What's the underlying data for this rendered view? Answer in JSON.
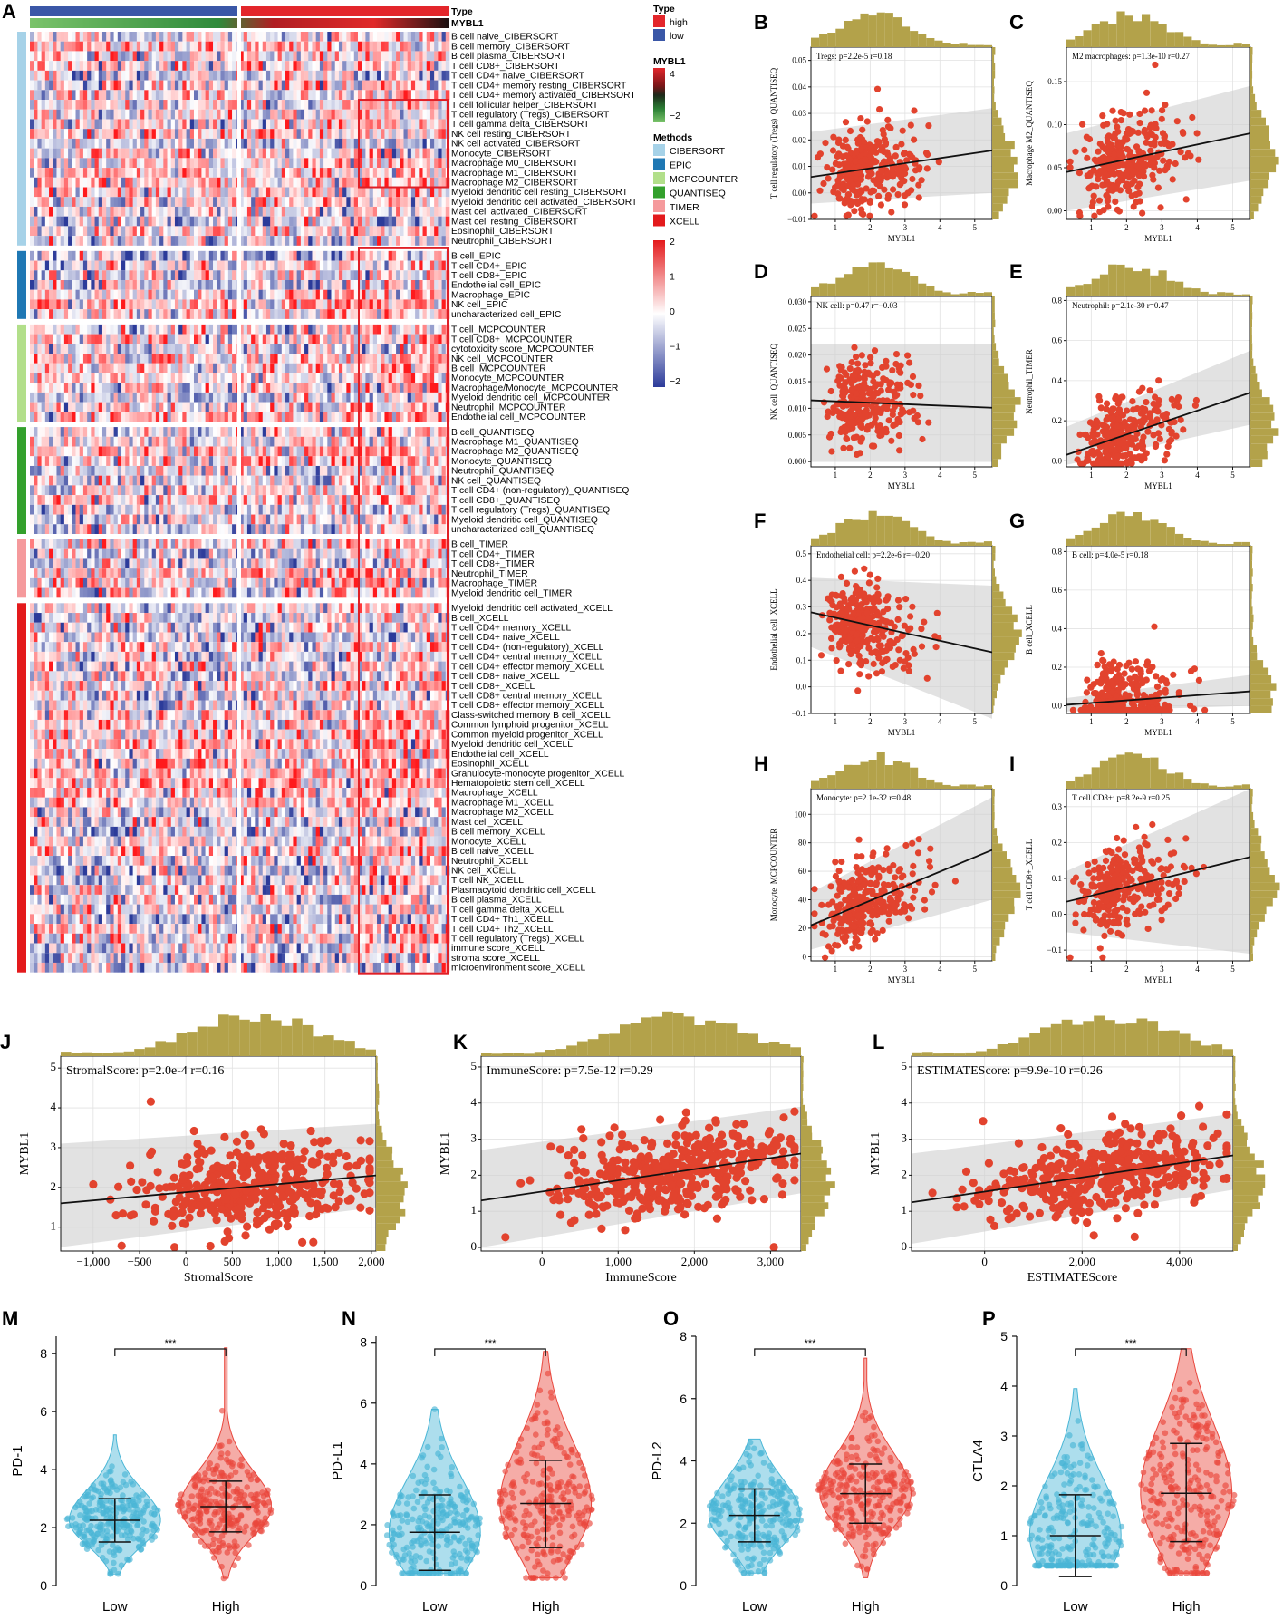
{
  "colors": {
    "high": "#e3262b",
    "low": "#3a57a7",
    "cibersort": "#a6d2e8",
    "epic": "#1f78b4",
    "mcpcounter": "#b2df8a",
    "quantiseq": "#33a02c",
    "timer": "#f59a9c",
    "xcell": "#e31a1c",
    "heat_hi": "#e41a1c",
    "heat_lo": "#2c3b9a",
    "scatter": "#e2432e",
    "hist": "#b3a24a",
    "violin_low": "#49b6d6",
    "violin_high": "#e9463c"
  },
  "heatmap": {
    "letter": "A",
    "top_labels": [
      "Type",
      "MYBL1"
    ],
    "groups": [
      {
        "method": "CIBERSORT",
        "rows": [
          "B cell naive_CIBERSORT",
          "B cell memory_CIBERSORT",
          "B cell plasma_CIBERSORT",
          "T cell CD8+_CIBERSORT",
          "T cell CD4+ naive_CIBERSORT",
          "T cell CD4+ memory resting_CIBERSORT",
          "T cell CD4+ memory activated_CIBERSORT",
          "T cell follicular helper_CIBERSORT",
          "T cell regulatory (Tregs)_CIBERSORT",
          "T cell gamma delta_CIBERSORT",
          "NK cell resting_CIBERSORT",
          "NK cell activated_CIBERSORT",
          "Monocyte_CIBERSORT",
          "Macrophage M0_CIBERSORT",
          "Macrophage M1_CIBERSORT",
          "Macrophage M2_CIBERSORT",
          "Myeloid dendritic cell resting_CIBERSORT",
          "Myeloid dendritic cell activated_CIBERSORT",
          "Mast cell activated_CIBERSORT",
          "Mast cell resting_CIBERSORT",
          "Eosinophil_CIBERSORT",
          "Neutrophil_CIBERSORT"
        ]
      },
      {
        "method": "EPIC",
        "rows": [
          "B cell_EPIC",
          "T cell CD4+_EPIC",
          "T cell CD8+_EPIC",
          "Endothelial cell_EPIC",
          "Macrophage_EPIC",
          "NK cell_EPIC",
          "uncharacterized cell_EPIC"
        ]
      },
      {
        "method": "MCPCOUNTER",
        "rows": [
          "T cell_MCPCOUNTER",
          "T cell CD8+_MCPCOUNTER",
          "cytotoxicity score_MCPCOUNTER",
          "NK cell_MCPCOUNTER",
          "B cell_MCPCOUNTER",
          "Monocyte_MCPCOUNTER",
          "Macrophage/Monocyte_MCPCOUNTER",
          "Myeloid dendritic cell_MCPCOUNTER",
          "Neutrophil_MCPCOUNTER",
          "Endothelial cell_MCPCOUNTER"
        ]
      },
      {
        "method": "QUANTISEQ",
        "rows": [
          "B cell_QUANTISEQ",
          "Macrophage M1_QUANTISEQ",
          "Macrophage M2_QUANTISEQ",
          "Monocyte_QUANTISEQ",
          "Neutrophil_QUANTISEQ",
          "NK cell_QUANTISEQ",
          "T cell CD4+ (non-regulatory)_QUANTISEQ",
          "T cell CD8+_QUANTISEQ",
          "T cell regulatory (Tregs)_QUANTISEQ",
          "Myeloid dendritic cell_QUANTISEQ",
          "uncharacterized cell_QUANTISEQ"
        ]
      },
      {
        "method": "TIMER",
        "rows": [
          "B cell_TIMER",
          "T cell CD4+_TIMER",
          "T cell CD8+_TIMER",
          "Neutrophil_TIMER",
          "Macrophage_TIMER",
          "Myeloid dendritic cell_TIMER"
        ]
      },
      {
        "method": "XCELL",
        "rows": [
          "Myeloid dendritic cell activated_XCELL",
          "B cell_XCELL",
          "T cell CD4+ memory_XCELL",
          "T cell CD4+ naive_XCELL",
          "T cell CD4+ (non-regulatory)_XCELL",
          "T cell CD4+ central memory_XCELL",
          "T cell CD4+ effector memory_XCELL",
          "T cell CD8+ naive_XCELL",
          "T cell CD8+_XCELL",
          "T cell CD8+ central memory_XCELL",
          "T cell CD8+ effector memory_XCELL",
          "Class-switched memory B cell_XCELL",
          "Common lymphoid progenitor_XCELL",
          "Common myeloid progenitor_XCELL",
          "Myeloid dendritic cell_XCELL",
          "Endothelial cell_XCELL",
          "Eosinophil_XCELL",
          "Granulocyte-monocyte progenitor_XCELL",
          "Hematopoietic stem cell_XCELL",
          "Macrophage_XCELL",
          "Macrophage M1_XCELL",
          "Macrophage M2_XCELL",
          "Mast cell_XCELL",
          "B cell memory_XCELL",
          "Monocyte_XCELL",
          "B cell naive_XCELL",
          "Neutrophil_XCELL",
          "NK cell_XCELL",
          "T cell NK_XCELL",
          "Plasmacytoid dendritic cell_XCELL",
          "B cell plasma_XCELL",
          "T cell gamma delta_XCELL",
          "T cell CD4+ Th1_XCELL",
          "T cell CD4+ Th2_XCELL",
          "T cell regulatory (Tregs)_XCELL",
          "immune score_XCELL",
          "stroma score_XCELL",
          "microenvironment score_XCELL"
        ]
      }
    ],
    "legend": {
      "type_title": "Type",
      "type_items": [
        "high",
        "low"
      ],
      "mybl1_title": "MYBL1",
      "mybl1_ticks": [
        "4",
        "−2"
      ],
      "methods_title": "Methods",
      "methods": [
        "CIBERSORT",
        "EPIC",
        "MCPCOUNTER",
        "QUANTISEQ",
        "TIMER",
        "XCELL"
      ],
      "scale_ticks": [
        "2",
        "1",
        "0",
        "−1",
        "−2"
      ]
    }
  },
  "chart_data": [
    {
      "letter": "B",
      "type": "scatter",
      "ylabel": "T cell regulatory (Tregs)_QUANTISEQ",
      "xlabel": "MYBL1",
      "annotation": "Tregs: p=2.2e-5 r=0.18",
      "xlim": [
        0.3,
        5.5
      ],
      "ylim": [
        -0.01,
        0.055
      ],
      "xticks": [
        1,
        2,
        3,
        4,
        5
      ],
      "yticks": [
        -0.01,
        0.0,
        0.01,
        0.02,
        0.03,
        0.04,
        0.05
      ],
      "ytick_labels": [
        "−0.01",
        "0.00",
        "0.01",
        "0.02",
        "0.03",
        "0.04",
        "0.05"
      ],
      "fit": [
        [
          0.3,
          0.006
        ],
        [
          5.5,
          0.016
        ]
      ],
      "band": [
        [
          0.3,
          -0.004,
          0.023
        ],
        [
          5.5,
          0.0,
          0.032
        ]
      ]
    },
    {
      "letter": "C",
      "type": "scatter",
      "ylabel": "Macrophage M2_QUANTISEQ",
      "xlabel": "MYBL1",
      "annotation": "M2 macrophages: p=1.3e-10 r=0.27",
      "xlim": [
        0.3,
        5.5
      ],
      "ylim": [
        -0.01,
        0.19
      ],
      "xticks": [
        1,
        2,
        3,
        4,
        5
      ],
      "yticks": [
        0.0,
        0.05,
        0.1,
        0.15
      ],
      "ytick_labels": [
        "0.00",
        "0.05",
        "0.10",
        "0.15"
      ],
      "fit": [
        [
          0.3,
          0.045
        ],
        [
          5.5,
          0.09
        ]
      ],
      "band": [
        [
          0.3,
          0.0,
          0.09
        ],
        [
          5.5,
          0.035,
          0.145
        ]
      ]
    },
    {
      "letter": "D",
      "type": "scatter",
      "ylabel": "NK cell_QUANTISEQ",
      "xlabel": "MYBL1",
      "annotation": "NK cell: p=0.47 r=−0.03",
      "xlim": [
        0.3,
        5.5
      ],
      "ylim": [
        -0.001,
        0.031
      ],
      "xticks": [
        1,
        2,
        3,
        4,
        5
      ],
      "yticks": [
        0.0,
        0.005,
        0.01,
        0.015,
        0.02,
        0.025,
        0.03
      ],
      "ytick_labels": [
        "0.000",
        "0.005",
        "0.010",
        "0.015",
        "0.020",
        "0.025",
        "0.030"
      ],
      "fit": [
        [
          0.3,
          0.0115
        ],
        [
          5.5,
          0.0101
        ]
      ],
      "band": [
        [
          0.3,
          0.0,
          0.022
        ],
        [
          5.5,
          0.0,
          0.022
        ]
      ]
    },
    {
      "letter": "E",
      "type": "scatter",
      "ylabel": "Neutrophil_TIMER",
      "xlabel": "MYBL1",
      "annotation": "Neutrophil: p=2.1e-30 r=0.47",
      "xlim": [
        0.3,
        5.5
      ],
      "ylim": [
        -0.03,
        0.82
      ],
      "xticks": [
        1,
        2,
        3,
        4,
        5
      ],
      "yticks": [
        0.0,
        0.2,
        0.4,
        0.6,
        0.8
      ],
      "ytick_labels": [
        "0.0",
        "0.2",
        "0.4",
        "0.6",
        "0.8"
      ],
      "fit": [
        [
          0.3,
          0.03
        ],
        [
          5.5,
          0.34
        ]
      ],
      "band": [
        [
          0.3,
          -0.02,
          0.17
        ],
        [
          5.5,
          0.18,
          0.55
        ]
      ]
    },
    {
      "letter": "F",
      "type": "scatter",
      "ylabel": "Endothelial cell_XCELL",
      "xlabel": "MYBL1",
      "annotation": "Endothelial cell: p=2.2e-6 r=−0.20",
      "xlim": [
        0.3,
        5.5
      ],
      "ylim": [
        -0.1,
        0.53
      ],
      "xticks": [
        1,
        2,
        3,
        4,
        5
      ],
      "yticks": [
        -0.1,
        0.0,
        0.1,
        0.2,
        0.3,
        0.4,
        0.5
      ],
      "ytick_labels": [
        "−0.1",
        "0.0",
        "0.1",
        "0.2",
        "0.3",
        "0.4",
        "0.5"
      ],
      "fit": [
        [
          0.3,
          0.28
        ],
        [
          5.5,
          0.13
        ]
      ],
      "band": [
        [
          0.3,
          0.15,
          0.41
        ],
        [
          5.5,
          -0.12,
          0.38
        ]
      ]
    },
    {
      "letter": "G",
      "type": "scatter",
      "ylabel": "B cell_XCELL",
      "xlabel": "MYBL1",
      "annotation": "B cell: p=4.0e-5 r=0.18",
      "xlim": [
        0.3,
        5.5
      ],
      "ylim": [
        -0.04,
        0.83
      ],
      "xticks": [
        1,
        2,
        3,
        4,
        5
      ],
      "yticks": [
        0.0,
        0.2,
        0.4,
        0.6,
        0.8
      ],
      "ytick_labels": [
        "0.0",
        "0.2",
        "0.4",
        "0.6",
        "0.8"
      ],
      "fit": [
        [
          0.3,
          0.005
        ],
        [
          5.5,
          0.075
        ]
      ],
      "band": [
        [
          0.3,
          -0.03,
          0.04
        ],
        [
          5.5,
          0.0,
          0.16
        ]
      ]
    },
    {
      "letter": "H",
      "type": "scatter",
      "ylabel": "Monocyte_MCPCOUNTER",
      "xlabel": "MYBL1",
      "annotation": "Monocyte: p=2.1e-32 r=0.48",
      "xlim": [
        0.3,
        5.5
      ],
      "ylim": [
        -3,
        118
      ],
      "xticks": [
        1,
        2,
        3,
        4,
        5
      ],
      "yticks": [
        0,
        20,
        40,
        60,
        80,
        100
      ],
      "ytick_labels": [
        "0",
        "20",
        "40",
        "60",
        "80",
        "100"
      ],
      "fit": [
        [
          0.3,
          22
        ],
        [
          5.5,
          75
        ]
      ],
      "band": [
        [
          0.3,
          5,
          45
        ],
        [
          5.5,
          40,
          112
        ]
      ]
    },
    {
      "letter": "I",
      "type": "scatter",
      "ylabel": "T cell CD8+_XCELL",
      "xlabel": "MYBL1",
      "annotation": "T cell CD8+: p=8.2e-9 r=0.25",
      "xlim": [
        0.3,
        5.5
      ],
      "ylim": [
        -0.13,
        0.35
      ],
      "xticks": [
        1,
        2,
        3,
        4,
        5
      ],
      "yticks": [
        -0.1,
        0.0,
        0.1,
        0.2,
        0.3
      ],
      "ytick_labels": [
        "−0.1",
        "0.0",
        "0.1",
        "0.2",
        "0.3"
      ],
      "fit": [
        [
          0.3,
          0.035
        ],
        [
          5.5,
          0.16
        ]
      ],
      "band": [
        [
          0.3,
          -0.05,
          0.12
        ],
        [
          5.5,
          -0.11,
          0.35
        ]
      ]
    },
    {
      "letter": "J",
      "type": "scatter",
      "ylabel": "MYBL1",
      "xlabel": "StromalScore",
      "annotation": "StromalScore: p=2.0e-4 r=0.16",
      "xlim": [
        -1350,
        2050
      ],
      "ylim": [
        0.4,
        5.3
      ],
      "xticks": [
        -1000,
        -500,
        0,
        500,
        1000,
        1500,
        2000
      ],
      "xtick_labels": [
        "−1,000",
        "−500",
        "0",
        "500",
        "1,000",
        "1,500",
        "2,000"
      ],
      "yticks": [
        1,
        2,
        3,
        4,
        5
      ],
      "ytick_labels": [
        "1",
        "2",
        "3",
        "4",
        "5"
      ],
      "fit": [
        [
          -1350,
          1.6
        ],
        [
          2050,
          2.3
        ]
      ],
      "band": [
        [
          -1350,
          0.5,
          3.1
        ],
        [
          2050,
          1.5,
          3.6
        ]
      ]
    },
    {
      "letter": "K",
      "type": "scatter",
      "ylabel": "MYBL1",
      "xlabel": "ImmuneScore",
      "annotation": "ImmuneScore: p=7.5e-12 r=0.29",
      "xlim": [
        -800,
        3400
      ],
      "ylim": [
        -0.1,
        5.3
      ],
      "xticks": [
        0,
        1000,
        2000,
        3000
      ],
      "xtick_labels": [
        "0",
        "1,000",
        "2,000",
        "3,000"
      ],
      "yticks": [
        0,
        1,
        2,
        3,
        4,
        5
      ],
      "ytick_labels": [
        "0",
        "1",
        "2",
        "3",
        "4",
        "5"
      ],
      "fit": [
        [
          -800,
          1.3
        ],
        [
          3400,
          2.6
        ]
      ],
      "band": [
        [
          -800,
          0.0,
          2.7
        ],
        [
          3400,
          1.5,
          3.9
        ]
      ]
    },
    {
      "letter": "L",
      "type": "scatter",
      "ylabel": "MYBL1",
      "xlabel": "ESTIMATEScore",
      "annotation": "ESTIMATEScore: p=9.9e-10 r=0.26",
      "xlim": [
        -1500,
        5100
      ],
      "ylim": [
        -0.1,
        5.3
      ],
      "xticks": [
        0,
        2000,
        4000
      ],
      "xtick_labels": [
        "0",
        "2,000",
        "4,000"
      ],
      "yticks": [
        0,
        1,
        2,
        3,
        4,
        5
      ],
      "ytick_labels": [
        "0",
        "1",
        "2",
        "3",
        "4",
        "5"
      ],
      "fit": [
        [
          -1500,
          1.25
        ],
        [
          5100,
          2.55
        ]
      ],
      "band": [
        [
          -1500,
          0.1,
          2.6
        ],
        [
          5100,
          1.6,
          3.7
        ]
      ]
    },
    {
      "letter": "M",
      "type": "violin",
      "ylabel": "PD-1",
      "categories": [
        "Low",
        "High"
      ],
      "ylim": [
        0,
        8.6
      ],
      "yticks": [
        0,
        2,
        4,
        6,
        8
      ],
      "ytick_labels": [
        "0",
        "2",
        "4",
        "6",
        "8"
      ],
      "mean": [
        2.25,
        2.72
      ],
      "sd_low": [
        1.5,
        1.85
      ],
      "sd_high": [
        3.0,
        3.6
      ],
      "max": [
        5.2,
        8.2
      ],
      "significance": "***"
    },
    {
      "letter": "N",
      "type": "violin",
      "ylabel": "PD-L1",
      "categories": [
        "Low",
        "High"
      ],
      "ylim": [
        0,
        8.2
      ],
      "yticks": [
        0,
        2,
        4,
        6,
        8
      ],
      "ytick_labels": [
        "0",
        "2",
        "4",
        "6",
        "8"
      ],
      "mean": [
        1.75,
        2.7
      ],
      "sd_low": [
        0.5,
        1.25
      ],
      "sd_high": [
        2.98,
        4.12
      ],
      "max": [
        5.8,
        7.7
      ],
      "significance": "***"
    },
    {
      "letter": "O",
      "type": "violin",
      "ylabel": "PD-L2",
      "categories": [
        "Low",
        "High"
      ],
      "ylim": [
        0,
        8.0
      ],
      "yticks": [
        0,
        2,
        4,
        6,
        8
      ],
      "ytick_labels": [
        "0",
        "2",
        "4",
        "6",
        "8"
      ],
      "mean": [
        2.25,
        2.95
      ],
      "sd_low": [
        1.4,
        2.0
      ],
      "sd_high": [
        3.1,
        3.9
      ],
      "max": [
        4.7,
        7.3
      ],
      "significance": "***"
    },
    {
      "letter": "P",
      "type": "violin",
      "ylabel": "CTLA4",
      "categories": [
        "Low",
        "High"
      ],
      "ylim": [
        0,
        5.0
      ],
      "yticks": [
        0,
        1,
        2,
        3,
        4,
        5
      ],
      "ytick_labels": [
        "0",
        "1",
        "2",
        "3",
        "4",
        "5"
      ],
      "mean": [
        1.0,
        1.85
      ],
      "sd_low": [
        0.18,
        0.88
      ],
      "sd_high": [
        1.82,
        2.85
      ],
      "max": [
        3.95,
        4.75
      ],
      "significance": "***"
    }
  ]
}
